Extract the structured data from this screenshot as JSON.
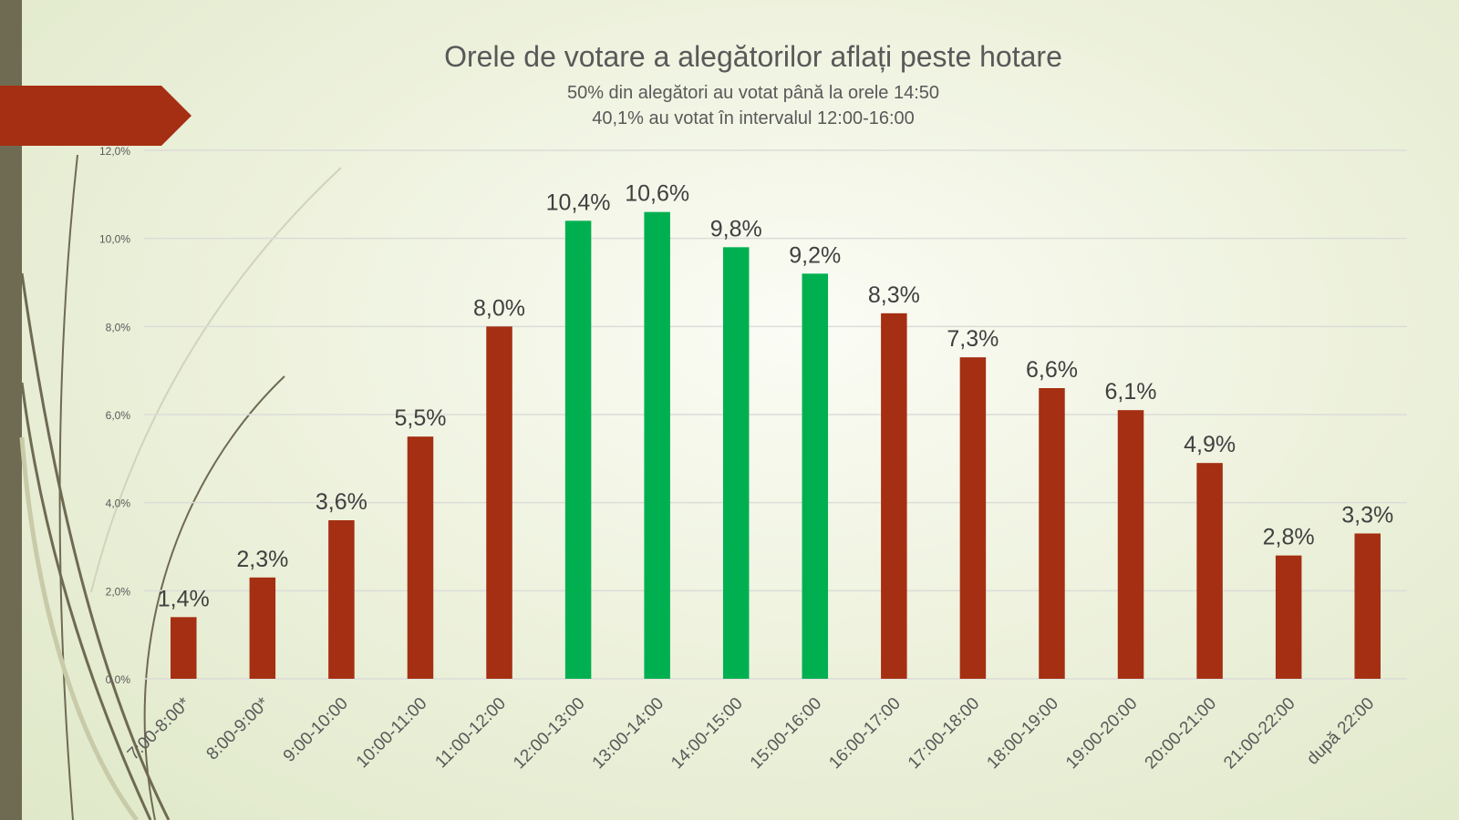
{
  "colors": {
    "highlight": "#00b050",
    "normal": "#a52f12",
    "sidebar": "#6f6a52"
  },
  "chart_data": {
    "type": "bar",
    "title": "Orele de votare a alegătorilor aflați peste hotare",
    "subtitle": [
      "50% din alegători au votat până la orele 14:50",
      "40,1% au votat în intervalul 12:00-16:00"
    ],
    "categories": [
      "7:00-8:00*",
      "8:00-9:00*",
      "9:00-10:00",
      "10:00-11:00",
      "11:00-12:00",
      "12:00-13:00",
      "13:00-14:00",
      "14:00-15:00",
      "15:00-16:00",
      "16:00-17:00",
      "17:00-18:00",
      "18:00-19:00",
      "19:00-20:00",
      "20:00-21:00",
      "21:00-22:00",
      "după 22:00"
    ],
    "values": [
      1.4,
      2.3,
      3.6,
      5.5,
      8.0,
      10.4,
      10.6,
      9.8,
      9.2,
      8.3,
      7.3,
      6.6,
      6.1,
      4.9,
      2.8,
      3.3
    ],
    "data_labels": [
      "1,4%",
      "2,3%",
      "3,6%",
      "5,5%",
      "8,0%",
      "10,4%",
      "10,6%",
      "9,8%",
      "9,2%",
      "8,3%",
      "7,3%",
      "6,6%",
      "6,1%",
      "4,9%",
      "2,8%",
      "3,3%"
    ],
    "highlighted": [
      5,
      6,
      7,
      8
    ],
    "ylim": [
      0,
      12
    ],
    "yticks": [
      0,
      2,
      4,
      6,
      8,
      10,
      12
    ],
    "ytick_labels": [
      "0,0%",
      "2,0%",
      "4,0%",
      "6,0%",
      "8,0%",
      "10,0%",
      "12,0%"
    ],
    "grid": true,
    "xlabel": "",
    "ylabel": ""
  }
}
